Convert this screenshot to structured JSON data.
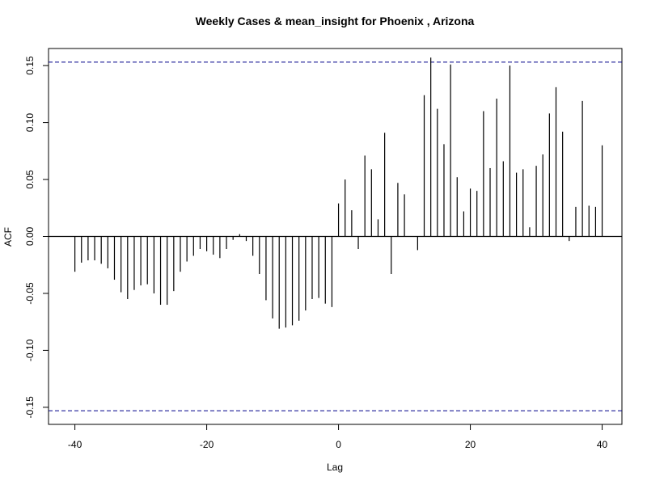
{
  "chart_data": {
    "type": "bar",
    "title": "Weekly Cases & mean_insight for Phoenix , Arizona",
    "xlabel": "Lag",
    "ylabel": "ACF",
    "xlim": [
      -44,
      43
    ],
    "ylim": [
      -0.165,
      0.165
    ],
    "xticks": [
      -40,
      -20,
      0,
      20,
      40
    ],
    "xtick_labels": [
      "-40",
      "-20",
      "0",
      "20",
      "40"
    ],
    "yticks": [
      -0.15,
      -0.1,
      -0.05,
      0.0,
      0.05,
      0.1,
      0.15
    ],
    "ytick_labels": [
      "-0.15",
      "-0.10",
      "-0.05",
      "0.00",
      "0.05",
      "0.10",
      "0.15"
    ],
    "confidence_bound": 0.153,
    "confidence_color": "#00008B",
    "bar_color": "#000000",
    "grid": false,
    "legend": "none",
    "x": [
      -40,
      -39,
      -38,
      -37,
      -36,
      -35,
      -34,
      -33,
      -32,
      -31,
      -30,
      -29,
      -28,
      -27,
      -26,
      -25,
      -24,
      -23,
      -22,
      -21,
      -20,
      -19,
      -18,
      -17,
      -16,
      -15,
      -14,
      -13,
      -12,
      -11,
      -10,
      -9,
      -8,
      -7,
      -6,
      -5,
      -4,
      -3,
      -2,
      -1,
      0,
      1,
      2,
      3,
      4,
      5,
      6,
      7,
      8,
      9,
      10,
      11,
      12,
      13,
      14,
      15,
      16,
      17,
      18,
      19,
      20,
      21,
      22,
      23,
      24,
      25,
      26,
      27,
      28,
      29,
      30,
      31,
      32,
      33,
      34,
      35,
      36,
      37,
      38,
      39,
      40
    ],
    "values": [
      -0.031,
      -0.023,
      -0.021,
      -0.021,
      -0.024,
      -0.028,
      -0.038,
      -0.049,
      -0.055,
      -0.047,
      -0.043,
      -0.042,
      -0.05,
      -0.06,
      -0.06,
      -0.048,
      -0.031,
      -0.022,
      -0.017,
      -0.011,
      -0.013,
      -0.016,
      -0.019,
      -0.011,
      -0.003,
      0.002,
      -0.004,
      -0.017,
      -0.033,
      -0.056,
      -0.072,
      -0.081,
      -0.08,
      -0.078,
      -0.074,
      -0.065,
      -0.055,
      -0.054,
      -0.059,
      -0.062,
      0.029,
      0.05,
      0.023,
      -0.011,
      0.071,
      0.059,
      0.015,
      0.091,
      -0.033,
      0.047,
      0.037,
      0.0,
      -0.012,
      0.124,
      0.157,
      0.112,
      0.081,
      0.151,
      0.052,
      0.022,
      0.042,
      0.04,
      0.11,
      0.06,
      0.121,
      0.066,
      0.15,
      0.056,
      0.059,
      0.008,
      0.062,
      0.072,
      0.108,
      0.131,
      0.092,
      -0.004,
      0.026,
      0.119,
      0.027,
      0.026,
      0.08
    ]
  }
}
